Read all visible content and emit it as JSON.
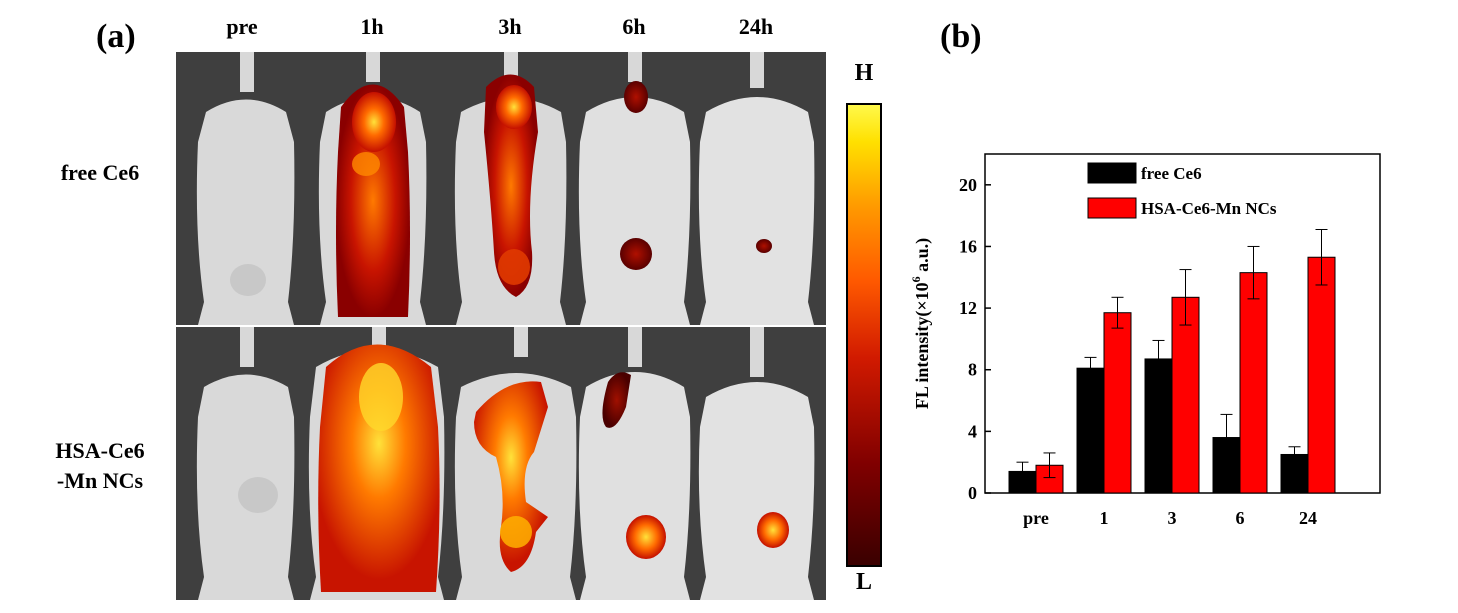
{
  "panel_a": {
    "label": "(a)",
    "timepoints": [
      "pre",
      "1h",
      "3h",
      "6h",
      "24h"
    ],
    "rows": [
      "free Ce6",
      "HSA-Ce6\n-Mn NCs"
    ],
    "colorbar": {
      "high": "H",
      "low": "L"
    }
  },
  "panel_b": {
    "label": "(b)"
  },
  "chart_data": {
    "type": "bar",
    "categories": [
      "pre",
      "1",
      "3",
      "6",
      "24"
    ],
    "series": [
      {
        "name": "free Ce6",
        "color": "#000000",
        "values": [
          1.4,
          8.1,
          8.7,
          3.6,
          2.5
        ],
        "errors": [
          0.6,
          0.7,
          1.2,
          1.5,
          0.5
        ]
      },
      {
        "name": "HSA-Ce6-Mn NCs",
        "color": "#ff0000",
        "values": [
          1.8,
          11.7,
          12.7,
          14.3,
          15.3
        ],
        "errors": [
          0.8,
          1.0,
          1.8,
          1.7,
          1.8
        ]
      }
    ],
    "ylabel": "FL intensity(×10^6 a.u.)",
    "ylim": [
      0,
      22
    ],
    "yticks": [
      0,
      4,
      8,
      12,
      16,
      20
    ],
    "legend_position": "top-left",
    "grid": false
  }
}
